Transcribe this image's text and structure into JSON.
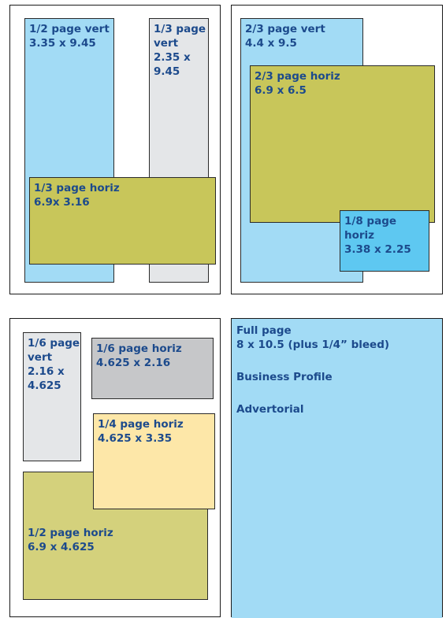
{
  "panels": [
    {
      "name": "panel-top-left",
      "blocks": [
        {
          "name": "ad-half-page-vert",
          "lines": [
            "1/2 page vert",
            "3.35 x 9.45"
          ]
        },
        {
          "name": "ad-third-page-vert",
          "lines": [
            "1/3 page",
            "vert",
            "2.35 x",
            "9.45"
          ]
        },
        {
          "name": "ad-third-page-horiz",
          "lines": [
            "1/3 page horiz",
            "6.9x 3.16"
          ]
        }
      ]
    },
    {
      "name": "panel-top-right",
      "blocks": [
        {
          "name": "ad-two-thirds-page-vert",
          "lines": [
            "2/3 page vert",
            "4.4 x 9.5"
          ]
        },
        {
          "name": "ad-two-thirds-page-horiz",
          "lines": [
            "2/3 page horiz",
            "6.9 x 6.5"
          ]
        },
        {
          "name": "ad-eighth-page-horiz",
          "lines": [
            "1/8 page",
            "horiz",
            "3.38 x 2.25"
          ]
        }
      ]
    },
    {
      "name": "panel-bottom-left",
      "blocks": [
        {
          "name": "ad-sixth-page-vert",
          "lines": [
            "1/6 page",
            "vert",
            "2.16 x",
            "4.625"
          ]
        },
        {
          "name": "ad-sixth-page-horiz",
          "lines": [
            "1/6 page horiz",
            "4.625 x 2.16"
          ]
        },
        {
          "name": "ad-half-page-horiz",
          "lines": [
            "",
            "",
            "",
            "",
            "1/2 page horiz",
            "6.9 x 4.625"
          ]
        },
        {
          "name": "ad-quarter-page-horiz",
          "lines": [
            "1/4 page horiz",
            "4.625 x 3.35"
          ]
        }
      ]
    },
    {
      "name": "panel-bottom-right",
      "blocks": [
        {
          "name": "ad-full-page",
          "lines": [
            "Full page",
            "8 x 10.5 (plus 1/4” bleed)",
            "",
            "Business Profile",
            "",
            "Advertorial"
          ]
        }
      ]
    }
  ]
}
